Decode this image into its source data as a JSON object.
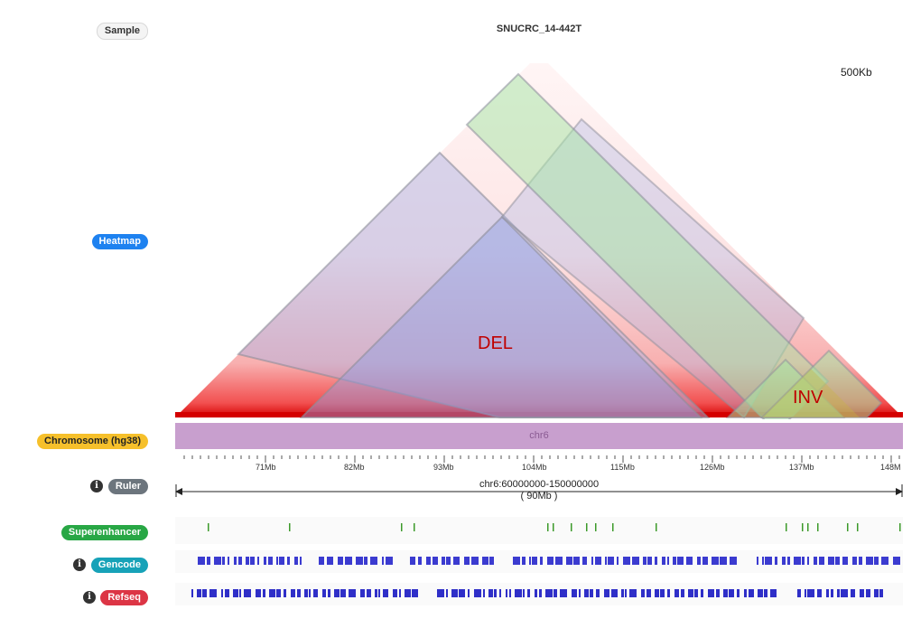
{
  "sample": {
    "label": "Sample",
    "name": "SNUCRC_14-442T"
  },
  "heatmap": {
    "label": "Heatmap",
    "resolution": "500Kb",
    "annotations": {
      "deletion": "DEL",
      "inversion": "INV"
    }
  },
  "chromosome": {
    "label": "Chromosome (hg38)",
    "name": "chr6"
  },
  "ruler": {
    "label": "Ruler",
    "info_glyph": "i",
    "ticks": [
      "71Mb",
      "82Mb",
      "93Mb",
      "104Mb",
      "115Mb",
      "126Mb",
      "137Mb",
      "148M"
    ],
    "range": "chr6:60000000-150000000",
    "span": "( 90Mb )"
  },
  "superenhancer": {
    "label": "Superenhancer",
    "color": "#3c9a2a"
  },
  "gencode": {
    "label": "Gencode",
    "info_glyph": "i",
    "color": "#3b3bd0"
  },
  "refseq": {
    "label": "Refseq",
    "info_glyph": "i",
    "color": "#2f2fc8"
  }
}
